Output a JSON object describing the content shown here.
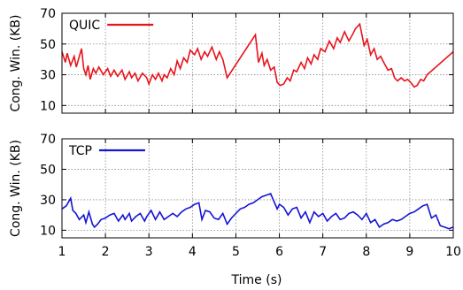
{
  "chart_data": [
    {
      "type": "line",
      "xlim": [
        1,
        10
      ],
      "ylim": [
        5,
        70
      ],
      "xticks": [
        1,
        2,
        3,
        4,
        5,
        6,
        7,
        8,
        9,
        10
      ],
      "yticks": [
        10,
        30,
        50,
        70
      ],
      "ylabel": "Cong. Win. (KB)",
      "xlabel": "",
      "grid": true,
      "legend": "top-left",
      "series": [
        {
          "name": "QUIC",
          "color": "#e8141c",
          "x": [
            1.0,
            1.08,
            1.12,
            1.2,
            1.28,
            1.33,
            1.45,
            1.5,
            1.55,
            1.6,
            1.65,
            1.72,
            1.78,
            1.85,
            1.95,
            2.05,
            2.12,
            2.2,
            2.28,
            2.38,
            2.45,
            2.55,
            2.6,
            2.68,
            2.75,
            2.85,
            2.95,
            3.0,
            3.08,
            3.15,
            3.22,
            3.3,
            3.35,
            3.42,
            3.5,
            3.58,
            3.65,
            3.72,
            3.8,
            3.88,
            3.95,
            4.05,
            4.12,
            4.2,
            4.28,
            4.35,
            4.45,
            4.55,
            4.62,
            4.7,
            4.8,
            5.45,
            5.52,
            5.6,
            5.65,
            5.72,
            5.8,
            5.88,
            5.95,
            6.02,
            6.1,
            6.18,
            6.25,
            6.33,
            6.4,
            6.5,
            6.58,
            6.65,
            6.73,
            6.8,
            6.88,
            6.95,
            7.05,
            7.15,
            7.25,
            7.33,
            7.4,
            7.5,
            7.6,
            7.68,
            7.75,
            7.85,
            7.95,
            8.02,
            8.1,
            8.18,
            8.25,
            8.33,
            8.42,
            8.5,
            8.58,
            8.65,
            8.72,
            8.8,
            8.88,
            8.95,
            9.02,
            9.1,
            9.17,
            9.25,
            9.32,
            9.4,
            10.0
          ],
          "values": [
            45,
            38,
            44,
            36,
            42,
            35,
            47,
            34,
            30,
            36,
            27,
            34,
            31,
            35,
            30,
            34,
            29,
            33,
            29,
            33,
            27,
            32,
            28,
            31,
            26,
            31,
            28,
            24,
            30,
            27,
            31,
            26,
            30,
            28,
            34,
            30,
            39,
            34,
            41,
            38,
            46,
            43,
            47,
            40,
            45,
            42,
            48,
            40,
            45,
            40,
            28,
            56,
            38,
            44,
            36,
            40,
            33,
            35,
            25,
            23,
            24,
            28,
            26,
            33,
            32,
            38,
            34,
            41,
            37,
            43,
            40,
            47,
            45,
            52,
            47,
            54,
            51,
            58,
            52,
            56,
            60,
            63,
            49,
            53,
            43,
            47,
            40,
            42,
            37,
            33,
            34,
            28,
            26,
            28,
            26,
            27,
            25,
            22,
            23,
            27,
            26,
            30,
            45
          ]
        }
      ]
    },
    {
      "type": "line",
      "xlim": [
        1,
        10
      ],
      "ylim": [
        5,
        70
      ],
      "xticks": [
        1,
        2,
        3,
        4,
        5,
        6,
        7,
        8,
        9,
        10
      ],
      "yticks": [
        10,
        30,
        50,
        70
      ],
      "ylabel": "Cong. Win. (KB)",
      "xlabel": "Time (s)",
      "grid": true,
      "legend": "top-left",
      "series": [
        {
          "name": "TCP",
          "color": "#1414d2",
          "x": [
            1.0,
            1.1,
            1.2,
            1.25,
            1.32,
            1.4,
            1.5,
            1.55,
            1.62,
            1.7,
            1.75,
            1.82,
            1.9,
            2.0,
            2.1,
            2.2,
            2.3,
            2.4,
            2.45,
            2.55,
            2.6,
            2.7,
            2.8,
            2.9,
            2.95,
            3.05,
            3.15,
            3.25,
            3.35,
            3.45,
            3.55,
            3.65,
            3.75,
            3.85,
            3.95,
            4.05,
            4.15,
            4.22,
            4.3,
            4.4,
            4.5,
            4.6,
            4.7,
            4.8,
            4.9,
            5.0,
            5.1,
            5.2,
            5.3,
            5.4,
            5.5,
            5.6,
            5.7,
            5.8,
            5.95,
            6.0,
            6.1,
            6.2,
            6.3,
            6.4,
            6.5,
            6.6,
            6.7,
            6.8,
            6.9,
            7.0,
            7.1,
            7.2,
            7.3,
            7.4,
            7.5,
            7.6,
            7.7,
            7.8,
            7.9,
            8.0,
            8.1,
            8.2,
            8.3,
            8.4,
            8.5,
            8.6,
            8.7,
            8.8,
            8.9,
            9.0,
            9.1,
            9.2,
            9.3,
            9.4,
            9.5,
            9.6,
            9.7,
            9.8,
            9.9,
            10.0
          ],
          "values": [
            24,
            26,
            31,
            23,
            21,
            17,
            20,
            15,
            22,
            14,
            12,
            14,
            17,
            18,
            20,
            21,
            16,
            20,
            17,
            21,
            16,
            19,
            21,
            16,
            19,
            23,
            17,
            22,
            17,
            19,
            21,
            19,
            22,
            24,
            25,
            27,
            28,
            17,
            23,
            22,
            18,
            17,
            21,
            14,
            18,
            21,
            24,
            25,
            27,
            28,
            30,
            32,
            33,
            34,
            24,
            27,
            25,
            20,
            24,
            25,
            18,
            22,
            15,
            22,
            19,
            21,
            16,
            19,
            21,
            17,
            18,
            21,
            22,
            20,
            17,
            21,
            15,
            17,
            12,
            14,
            15,
            17,
            16,
            17,
            19,
            21,
            22,
            24,
            26,
            27,
            18,
            20,
            13,
            12,
            11,
            12
          ]
        }
      ]
    }
  ]
}
